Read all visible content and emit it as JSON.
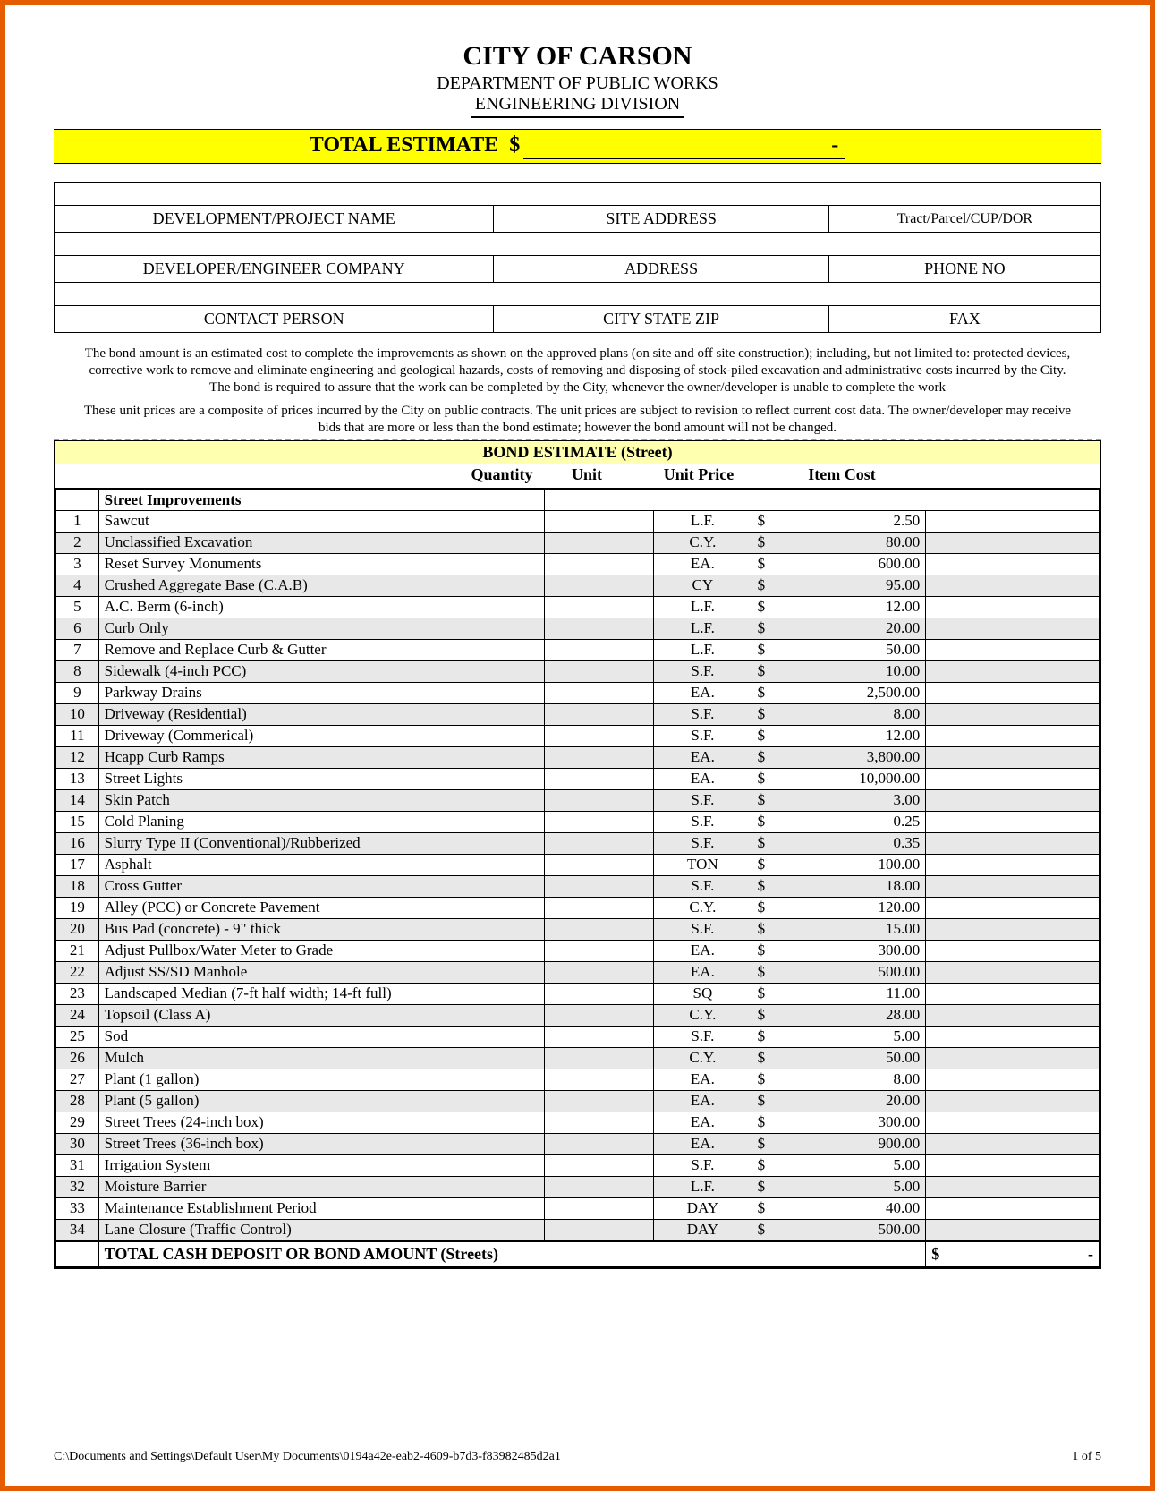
{
  "header": {
    "city": "CITY OF CARSON",
    "department": "DEPARTMENT OF PUBLIC WORKS",
    "division": "ENGINEERING DIVISION"
  },
  "total_estimate": {
    "label": "TOTAL ESTIMATE",
    "currency": "$",
    "value": "-"
  },
  "info": {
    "row1": {
      "a": "DEVELOPMENT/PROJECT NAME",
      "b": "SITE ADDRESS",
      "c": "Tract/Parcel/CUP/DOR"
    },
    "row2": {
      "a": "DEVELOPER/ENGINEER COMPANY",
      "b": "ADDRESS",
      "c": "PHONE NO"
    },
    "row3": {
      "a": "CONTACT PERSON",
      "b": "CITY STATE ZIP",
      "c": "FAX"
    }
  },
  "paragraph1": "The bond amount is an estimated cost to complete the improvements as shown on the approved plans (on site and off site construction); including, but not limited to: protected devices, corrective work to remove and eliminate engineering and geological hazards, costs of removing and disposing of stock-piled excavation and administrative costs incurred by the City.  The bond is required to assure that the work can be completed by the City, whenever the owner/developer is unable to complete the work",
  "paragraph2": "These unit prices are a composite of prices incurred by the City on public contracts.  The unit prices are subject to revision to reflect current cost data. The owner/developer may receive bids that are more or less than the bond estimate; however the bond amount will not be changed.",
  "bond_title": "BOND ESTIMATE (Street)",
  "col_headers": {
    "qty": "Quantity",
    "unit": "Unit",
    "price": "Unit Price",
    "cost": "Item Cost"
  },
  "section_label": "Street Improvements",
  "rows": [
    {
      "n": "1",
      "desc": "Sawcut",
      "unit": "L.F.",
      "price": "2.50"
    },
    {
      "n": "2",
      "desc": "Unclassified Excavation",
      "unit": "C.Y.",
      "price": "80.00"
    },
    {
      "n": "3",
      "desc": "Reset Survey Monuments",
      "unit": "EA.",
      "price": "600.00"
    },
    {
      "n": "4",
      "desc": "Crushed Aggregate Base (C.A.B)",
      "unit": "CY",
      "price": "95.00"
    },
    {
      "n": "5",
      "desc": "A.C. Berm (6-inch)",
      "unit": "L.F.",
      "price": "12.00"
    },
    {
      "n": "6",
      "desc": "Curb Only",
      "unit": "L.F.",
      "price": "20.00"
    },
    {
      "n": "7",
      "desc": "Remove and Replace Curb & Gutter",
      "unit": "L.F.",
      "price": "50.00"
    },
    {
      "n": "8",
      "desc": "Sidewalk (4-inch PCC)",
      "unit": "S.F.",
      "price": "10.00"
    },
    {
      "n": "9",
      "desc": "Parkway Drains",
      "unit": "EA.",
      "price": "2,500.00"
    },
    {
      "n": "10",
      "desc": "Driveway (Residential)",
      "unit": "S.F.",
      "price": "8.00"
    },
    {
      "n": "11",
      "desc": "Driveway (Commerical)",
      "unit": "S.F.",
      "price": "12.00"
    },
    {
      "n": "12",
      "desc": "Hcapp Curb Ramps",
      "unit": "EA.",
      "price": "3,800.00"
    },
    {
      "n": "13",
      "desc": "Street Lights",
      "unit": "EA.",
      "price": "10,000.00"
    },
    {
      "n": "14",
      "desc": "Skin Patch",
      "unit": "S.F.",
      "price": "3.00"
    },
    {
      "n": "15",
      "desc": "Cold Planing",
      "unit": "S.F.",
      "price": "0.25"
    },
    {
      "n": "16",
      "desc": "Slurry Type II (Conventional)/Rubberized",
      "unit": "S.F.",
      "price": "0.35"
    },
    {
      "n": "17",
      "desc": "Asphalt",
      "unit": "TON",
      "price": "100.00"
    },
    {
      "n": "18",
      "desc": "Cross Gutter",
      "unit": "S.F.",
      "price": "18.00"
    },
    {
      "n": "19",
      "desc": "Alley (PCC) or Concrete Pavement",
      "unit": "C.Y.",
      "price": "120.00"
    },
    {
      "n": "20",
      "desc": "Bus Pad (concrete) - 9\" thick",
      "unit": "S.F.",
      "price": "15.00"
    },
    {
      "n": "21",
      "desc": "Adjust Pullbox/Water Meter to Grade",
      "unit": "EA.",
      "price": "300.00"
    },
    {
      "n": "22",
      "desc": "Adjust SS/SD Manhole",
      "unit": "EA.",
      "price": "500.00"
    },
    {
      "n": "23",
      "desc": "Landscaped Median (7-ft half width; 14-ft full)",
      "unit": "SQ",
      "price": "11.00"
    },
    {
      "n": "24",
      "desc": "Topsoil (Class A)",
      "unit": "C.Y.",
      "price": "28.00"
    },
    {
      "n": "25",
      "desc": "Sod",
      "unit": "S.F.",
      "price": "5.00"
    },
    {
      "n": "26",
      "desc": "Mulch",
      "unit": "C.Y.",
      "price": "50.00"
    },
    {
      "n": "27",
      "desc": "Plant (1 gallon)",
      "unit": "EA.",
      "price": "8.00"
    },
    {
      "n": "28",
      "desc": "Plant (5 gallon)",
      "unit": "EA.",
      "price": "20.00"
    },
    {
      "n": "29",
      "desc": "Street Trees (24-inch box)",
      "unit": "EA.",
      "price": "300.00"
    },
    {
      "n": "30",
      "desc": "Street Trees (36-inch box)",
      "unit": "EA.",
      "price": "900.00"
    },
    {
      "n": "31",
      "desc": "Irrigation System",
      "unit": "S.F.",
      "price": "5.00"
    },
    {
      "n": "32",
      "desc": "Moisture Barrier",
      "unit": "L.F.",
      "price": "5.00"
    },
    {
      "n": "33",
      "desc": "Maintenance Establishment Period",
      "unit": "DAY",
      "price": "40.00"
    },
    {
      "n": "34",
      "desc": "Lane Closure (Traffic Control)",
      "unit": "DAY",
      "price": "500.00"
    }
  ],
  "total_row": {
    "label": "TOTAL CASH DEPOSIT OR BOND AMOUNT (Streets)",
    "currency": "$",
    "value": "-"
  },
  "footer": {
    "path": "C:\\Documents and Settings\\Default User\\My Documents\\0194a42e-eab2-4609-b7d3-f83982485d2a1",
    "page": "1 of 5"
  },
  "style": {
    "frame_border_color": "#e65c00",
    "highlight_yellow": "#ffff00",
    "pale_yellow": "#ffffb0",
    "row_shade": "#e8e8e8",
    "dash_color": "#c9a500"
  }
}
